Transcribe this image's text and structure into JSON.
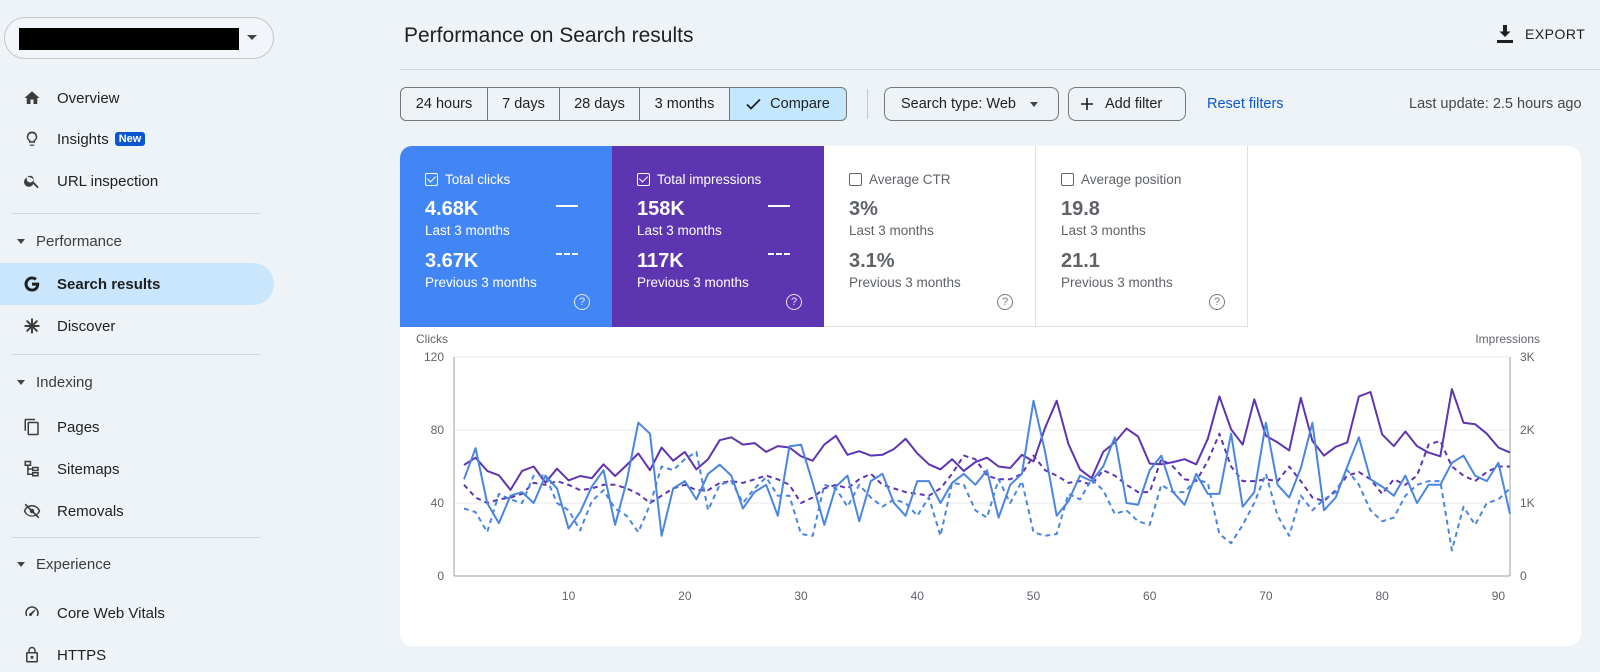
{
  "sidebar": {
    "property_select": {
      "value": ""
    },
    "items": {
      "overview": "Overview",
      "insights": "Insights",
      "insights_badge": "New",
      "url_inspection": "URL inspection",
      "search_results": "Search results",
      "discover": "Discover",
      "pages": "Pages",
      "sitemaps": "Sitemaps",
      "removals": "Removals",
      "core_web_vitals": "Core Web Vitals",
      "https": "HTTPS"
    },
    "sections": {
      "performance": "Performance",
      "indexing": "Indexing",
      "experience": "Experience"
    }
  },
  "header": {
    "title": "Performance on Search results",
    "export_label": "EXPORT"
  },
  "filters": {
    "ranges": [
      "24 hours",
      "7 days",
      "28 days",
      "3 months"
    ],
    "compare_label": "Compare",
    "search_type": "Search type: Web",
    "add_filter": "Add filter",
    "reset": "Reset filters",
    "last_update": "Last update: 2.5 hours ago"
  },
  "metrics": {
    "clicks": {
      "label": "Total clicks",
      "current": "4.68K",
      "current_label": "Last 3 months",
      "previous": "3.67K",
      "previous_label": "Previous 3 months",
      "checked": true,
      "color": "#4285f4"
    },
    "impressions": {
      "label": "Total impressions",
      "current": "158K",
      "current_label": "Last 3 months",
      "previous": "117K",
      "previous_label": "Previous 3 months",
      "checked": true,
      "color": "#5e35b1"
    },
    "ctr": {
      "label": "Average CTR",
      "current": "3%",
      "current_label": "Last 3 months",
      "previous": "3.1%",
      "previous_label": "Previous 3 months",
      "checked": false
    },
    "position": {
      "label": "Average position",
      "current": "19.8",
      "current_label": "Last 3 months",
      "previous": "21.1",
      "previous_label": "Previous 3 months",
      "checked": false
    }
  },
  "chart_data": {
    "type": "line",
    "ylabel_left": "Clicks",
    "ylabel_right": "Impressions",
    "ylim_left": [
      0,
      120
    ],
    "ylim_right": [
      0,
      3000
    ],
    "yticks_left": [
      "0",
      "40",
      "80",
      "120"
    ],
    "yticks_right": [
      "0",
      "1K",
      "2K",
      "3K"
    ],
    "xlim": [
      1,
      91
    ],
    "xticks": [
      10,
      20,
      30,
      40,
      50,
      60,
      70,
      80,
      90
    ],
    "grid": true,
    "series": [
      {
        "axis": "right",
        "style": "solid",
        "color": "#5e35b1",
        "values": [
          1520,
          1620,
          1440,
          1380,
          1180,
          1440,
          1500,
          1280,
          1470,
          1310,
          1370,
          1340,
          1530,
          1370,
          1520,
          1680,
          1450,
          1760,
          1580,
          1700,
          1460,
          1600,
          1860,
          1900,
          1800,
          1820,
          1700,
          1780,
          1760,
          1640,
          1580,
          1800,
          1920,
          1660,
          1710,
          1650,
          1660,
          1740,
          1880,
          1680,
          1530,
          1460,
          1600,
          1440,
          1560,
          1620,
          1500,
          1480,
          1660,
          1570,
          2030,
          2400,
          1810,
          1460,
          1340,
          1700,
          1830,
          2020,
          1910,
          1540,
          1530,
          1560,
          1600,
          1530,
          1880,
          2460,
          2010,
          1800,
          2420,
          1920,
          1830,
          1720,
          2440,
          1850,
          1650,
          1770,
          1830,
          2460,
          2520,
          1940,
          1780,
          1980,
          1780,
          1690,
          1640,
          2560,
          2100,
          2080,
          1950,
          1760,
          1690
        ]
      },
      {
        "axis": "left",
        "style": "dashed",
        "color": "#5e35b1",
        "values": [
          50,
          43,
          40,
          42,
          43,
          45,
          51,
          50,
          52,
          50,
          47,
          48,
          50,
          50,
          48,
          45,
          40,
          44,
          48,
          50,
          47,
          47,
          51,
          52,
          51,
          53,
          55,
          53,
          50,
          40,
          43,
          48,
          50,
          48,
          53,
          56,
          50,
          48,
          46,
          45,
          44,
          48,
          56,
          66,
          64,
          55,
          53,
          53,
          56,
          66,
          58,
          55,
          51,
          52,
          50,
          58,
          55,
          50,
          46,
          46,
          64,
          60,
          53,
          52,
          63,
          78,
          60,
          52,
          52,
          53,
          52,
          60,
          52,
          43,
          41,
          47,
          55,
          57,
          53,
          45,
          53,
          50,
          55,
          72,
          74,
          60,
          55,
          52,
          57,
          60,
          60
        ]
      },
      {
        "axis": "left",
        "style": "solid",
        "color": "#4a86e0",
        "values": [
          53,
          70,
          40,
          29,
          44,
          46,
          40,
          55,
          48,
          26,
          35,
          49,
          58,
          28,
          52,
          84,
          78,
          22,
          48,
          52,
          42,
          56,
          61,
          55,
          37,
          46,
          50,
          33,
          71,
          72,
          51,
          28,
          49,
          55,
          30,
          52,
          56,
          40,
          33,
          52,
          52,
          40,
          51,
          56,
          50,
          58,
          32,
          50,
          56,
          96,
          68,
          33,
          41,
          55,
          52,
          60,
          76,
          40,
          39,
          58,
          66,
          46,
          39,
          56,
          45,
          45,
          78,
          38,
          46,
          84,
          50,
          43,
          59,
          84,
          36,
          43,
          60,
          76,
          53,
          49,
          44,
          55,
          40,
          50,
          50,
          62,
          66,
          55,
          52,
          62,
          34
        ]
      },
      {
        "axis": "left",
        "style": "dashed",
        "color": "#4a86e0",
        "values": [
          37,
          35,
          24,
          45,
          42,
          40,
          55,
          55,
          40,
          36,
          25,
          41,
          47,
          37,
          33,
          24,
          39,
          60,
          58,
          64,
          68,
          36,
          50,
          52,
          40,
          48,
          54,
          44,
          44,
          23,
          22,
          50,
          48,
          38,
          50,
          43,
          38,
          42,
          40,
          33,
          43,
          22,
          51,
          50,
          36,
          32,
          53,
          40,
          52,
          24,
          22,
          23,
          45,
          42,
          53,
          47,
          34,
          36,
          30,
          28,
          50,
          46,
          46,
          53,
          51,
          23,
          18,
          28,
          40,
          56,
          33,
          22,
          44,
          36,
          42,
          46,
          58,
          50,
          36,
          30,
          32,
          44,
          50,
          52,
          52,
          14,
          38,
          28,
          40,
          42,
          48
        ]
      }
    ]
  }
}
